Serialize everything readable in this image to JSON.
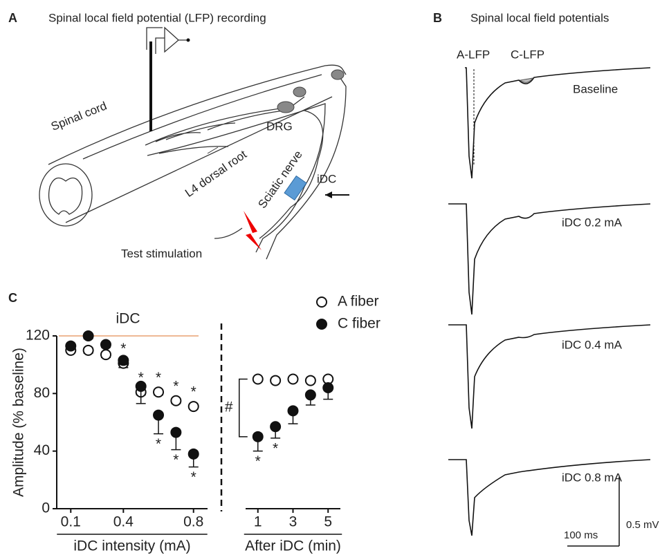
{
  "panel_a": {
    "letter": "A",
    "title": "Spinal local field potential (LFP) recording",
    "spinal_cord": "Spinal cord",
    "drg": "DRG",
    "dorsal_root": "L4 dorsal root",
    "sciatic_nerve": "Sciatic nerve",
    "idc": "iDC",
    "stimulation": "Test stimulation"
  },
  "panel_b": {
    "letter": "B",
    "title": "Spinal local field potentials",
    "a_lfp": "A-LFP",
    "c_lfp": "C-LFP",
    "traces": [
      "Baseline",
      "iDC 0.2 mA",
      "iDC 0.4 mA",
      "iDC 0.8 mA"
    ],
    "scale_time": "100 ms",
    "scale_voltage": "0.5 mV"
  },
  "chart_data": {
    "type": "scatter",
    "letter": "C",
    "ylabel": "Amplitude (% baseline)",
    "ylim": [
      0,
      120
    ],
    "yticks": [
      0,
      40,
      80,
      120
    ],
    "annotation": "iDC",
    "annotation_color": "#e8a070",
    "bracket_label": "#",
    "series": [
      {
        "name": "A fiber",
        "filled": false
      },
      {
        "name": "C fiber",
        "filled": true
      }
    ],
    "segments": [
      {
        "xlabel": "iDC intensity (mA)",
        "x": [
          0.1,
          0.2,
          0.3,
          0.4,
          0.5,
          0.6,
          0.7,
          0.8
        ],
        "xlim": [
          0.02,
          0.88
        ],
        "xticks": [
          0.1,
          0.4,
          0.8
        ],
        "values": [
          [
            110,
            110,
            107,
            101,
            81,
            81,
            75,
            71
          ],
          [
            113,
            120,
            114,
            103,
            85,
            65,
            53,
            38
          ]
        ],
        "errors": [
          [
            1,
            2,
            2,
            3,
            2,
            2,
            2,
            1
          ],
          [
            2,
            2,
            2,
            3,
            12,
            13,
            12,
            9
          ]
        ],
        "star_labels": [
          [
            null,
            null,
            null,
            "*",
            "*",
            "*",
            "*",
            "*"
          ],
          [
            null,
            null,
            null,
            null,
            null,
            "*",
            "*",
            "*"
          ]
        ]
      },
      {
        "xlabel": "After iDC (min)",
        "x": [
          1,
          2,
          3,
          4,
          5
        ],
        "xlim": [
          0.3,
          5.7
        ],
        "xticks": [
          1,
          3,
          5
        ],
        "values": [
          [
            90,
            89,
            90,
            89,
            90
          ],
          [
            50,
            57,
            68,
            79,
            84
          ]
        ],
        "errors": [
          [
            1,
            1,
            1,
            1,
            1
          ],
          [
            10,
            8,
            9,
            7,
            8
          ]
        ],
        "star_labels": [
          [
            null,
            null,
            null,
            null,
            null
          ],
          [
            "*",
            "*",
            null,
            null,
            null
          ]
        ]
      }
    ]
  }
}
